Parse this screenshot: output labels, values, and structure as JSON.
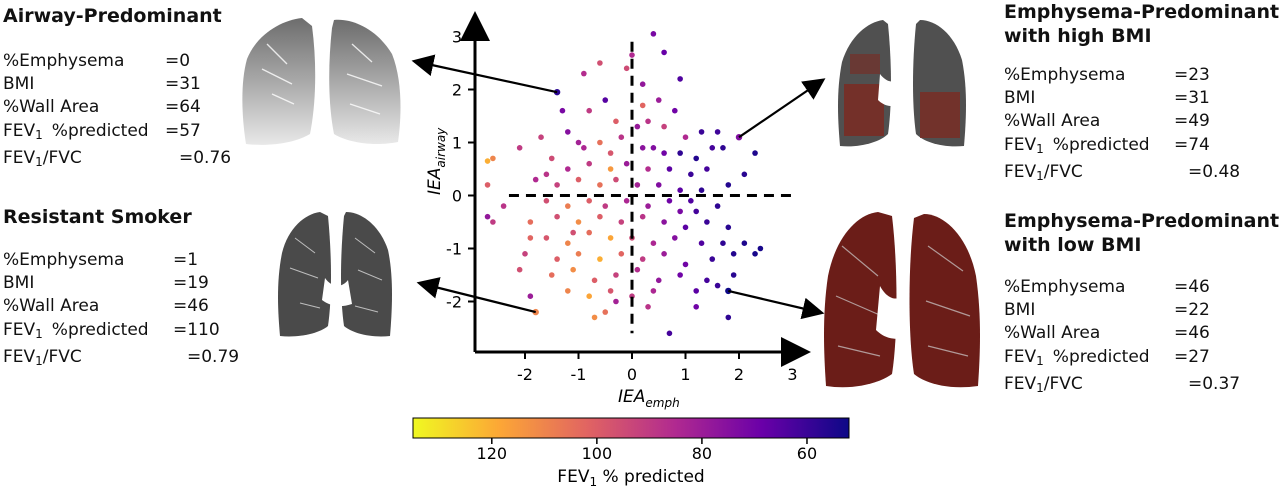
{
  "panels": {
    "airway": {
      "title": "Airway-Predominant",
      "rows": [
        {
          "label": "%Emphysema",
          "value": "=0"
        },
        {
          "label": "BMI",
          "value": "=31"
        },
        {
          "label": "%Wall Area",
          "value": "=64"
        },
        {
          "label": "FEV",
          "sub": "1",
          "label2": "%predicted",
          "value": "=57"
        },
        {
          "label": "FEV",
          "sub": "1",
          "label2": "/FVC",
          "value": "=0.76"
        }
      ]
    },
    "resistant": {
      "title": "Resistant Smoker",
      "rows": [
        {
          "label": "%Emphysema",
          "value": "=1"
        },
        {
          "label": "BMI",
          "value": "=19"
        },
        {
          "label": "%Wall Area",
          "value": "=46"
        },
        {
          "label": "FEV",
          "sub": "1",
          "label2": "%predicted",
          "value": "=110"
        },
        {
          "label": "FEV",
          "sub": "1",
          "label2": "/FVC",
          "value": "=0.79"
        }
      ]
    },
    "emph_high": {
      "title_line1": "Emphysema-Predominant",
      "title_line2": "with high BMI",
      "rows": [
        {
          "label": "%Emphysema",
          "value": "=23"
        },
        {
          "label": "BMI",
          "value": "=31"
        },
        {
          "label": "%Wall Area",
          "value": "=49"
        },
        {
          "label": "FEV",
          "sub": "1",
          "label2": "%predicted",
          "value": "=74"
        },
        {
          "label": "FEV",
          "sub": "1",
          "label2": "/FVC",
          "value": "=0.48"
        }
      ]
    },
    "emph_low": {
      "title_line1": "Emphysema-Predominant",
      "title_line2": "with low BMI",
      "rows": [
        {
          "label": "%Emphysema",
          "value": "=46"
        },
        {
          "label": "BMI",
          "value": "=22"
        },
        {
          "label": "%Wall Area",
          "value": "=46"
        },
        {
          "label": "FEV",
          "sub": "1",
          "label2": "%predicted",
          "value": "=27"
        },
        {
          "label": "FEV",
          "sub": "1",
          "label2": "/FVC",
          "value": "=0.37"
        }
      ]
    }
  },
  "chart_data": {
    "type": "scatter",
    "xlabel_main": "IEA",
    "xlabel_sub": "emph",
    "ylabel_main": "IEA",
    "ylabel_sub": "airway",
    "xlim": [
      -3,
      3.2
    ],
    "ylim": [
      -3,
      3.4
    ],
    "xticks": [
      "-2",
      "-1",
      "0",
      "1",
      "2",
      "3"
    ],
    "yticks": [
      "-2",
      "-1",
      "0",
      "1",
      "2",
      "3"
    ],
    "reference_lines": {
      "x": 0,
      "y": 0,
      "style": "dashed"
    },
    "colorbar": {
      "label_main": "FEV",
      "label_sub": "1",
      "label_rest": " % predicted",
      "range": [
        135,
        52
      ],
      "ticks": [
        "120",
        "100",
        "80",
        "60"
      ],
      "colormap": "plasma (reversed)"
    },
    "highlighted_points": [
      {
        "x": -1.4,
        "y": 1.95,
        "fev1": 57,
        "case": "airway"
      },
      {
        "x": 2.0,
        "y": 1.1,
        "fev1": 74,
        "case": "emph_high"
      },
      {
        "x": -1.8,
        "y": -2.2,
        "fev1": 110,
        "case": "resistant"
      },
      {
        "x": 1.8,
        "y": -1.8,
        "fev1": 27,
        "case": "emph_low"
      }
    ],
    "points": [
      [
        0.4,
        3.05,
        72
      ],
      [
        0.0,
        2.65,
        85
      ],
      [
        -0.1,
        2.4,
        95
      ],
      [
        0.2,
        2.1,
        78
      ],
      [
        0.5,
        1.8,
        80
      ],
      [
        0.8,
        1.6,
        70
      ],
      [
        -0.5,
        1.8,
        65
      ],
      [
        -0.8,
        1.6,
        90
      ],
      [
        -0.3,
        1.4,
        100
      ],
      [
        0.3,
        1.4,
        88
      ],
      [
        0.6,
        1.3,
        92
      ],
      [
        1.0,
        1.1,
        85
      ],
      [
        1.3,
        1.2,
        60
      ],
      [
        1.5,
        0.9,
        62
      ],
      [
        1.7,
        0.9,
        58
      ],
      [
        2.3,
        0.8,
        55
      ],
      [
        -1.2,
        1.2,
        75
      ],
      [
        -1.0,
        1.0,
        82
      ],
      [
        -0.6,
        1.0,
        105
      ],
      [
        -0.2,
        1.1,
        88
      ],
      [
        0.2,
        0.9,
        76
      ],
      [
        0.6,
        0.8,
        70
      ],
      [
        0.9,
        0.8,
        58
      ],
      [
        1.2,
        0.7,
        56
      ],
      [
        -2.6,
        0.7,
        110
      ],
      [
        -2.7,
        0.65,
        120
      ],
      [
        -1.5,
        0.7,
        95
      ],
      [
        -1.2,
        0.5,
        85
      ],
      [
        -0.8,
        0.6,
        90
      ],
      [
        -0.4,
        0.5,
        115
      ],
      [
        -0.1,
        0.6,
        80
      ],
      [
        0.3,
        0.5,
        86
      ],
      [
        0.7,
        0.5,
        66
      ],
      [
        1.1,
        0.4,
        60
      ],
      [
        1.4,
        0.5,
        62
      ],
      [
        2.1,
        0.4,
        57
      ],
      [
        -2.7,
        0.2,
        100
      ],
      [
        -1.8,
        0.3,
        85
      ],
      [
        -1.4,
        0.2,
        92
      ],
      [
        -1.0,
        0.3,
        100
      ],
      [
        -0.6,
        0.2,
        105
      ],
      [
        -0.3,
        0.3,
        95
      ],
      [
        0.1,
        0.2,
        82
      ],
      [
        0.5,
        0.2,
        74
      ],
      [
        0.9,
        0.1,
        66
      ],
      [
        1.3,
        0.1,
        58
      ],
      [
        1.8,
        0.2,
        56
      ],
      [
        -2.4,
        -0.2,
        88
      ],
      [
        -1.6,
        -0.1,
        96
      ],
      [
        -1.2,
        -0.2,
        108
      ],
      [
        -0.8,
        -0.1,
        100
      ],
      [
        -0.5,
        -0.2,
        90
      ],
      [
        -0.1,
        -0.1,
        84
      ],
      [
        0.3,
        -0.2,
        80
      ],
      [
        0.7,
        -0.1,
        70
      ],
      [
        1.2,
        -0.3,
        62
      ],
      [
        1.6,
        -0.2,
        58
      ],
      [
        -2.6,
        -0.5,
        90
      ],
      [
        -1.9,
        -0.5,
        104
      ],
      [
        -1.4,
        -0.4,
        96
      ],
      [
        -1.0,
        -0.5,
        112
      ],
      [
        -0.6,
        -0.4,
        100
      ],
      [
        -0.2,
        -0.5,
        92
      ],
      [
        0.2,
        -0.4,
        88
      ],
      [
        0.6,
        -0.5,
        76
      ],
      [
        1.0,
        -0.6,
        66
      ],
      [
        1.4,
        -0.5,
        60
      ],
      [
        1.8,
        -0.6,
        57
      ],
      [
        -1.6,
        -0.8,
        98
      ],
      [
        -1.2,
        -0.9,
        110
      ],
      [
        -0.8,
        -0.7,
        104
      ],
      [
        -0.4,
        -0.8,
        118
      ],
      [
        0.0,
        -0.8,
        95
      ],
      [
        0.4,
        -0.9,
        84
      ],
      [
        0.8,
        -0.8,
        75
      ],
      [
        1.3,
        -0.9,
        64
      ],
      [
        1.7,
        -0.9,
        58
      ],
      [
        2.1,
        -0.9,
        55
      ],
      [
        2.4,
        -1.0,
        54
      ],
      [
        -2.0,
        -1.1,
        92
      ],
      [
        -1.4,
        -1.2,
        100
      ],
      [
        -1.0,
        -1.1,
        108
      ],
      [
        -0.6,
        -1.2,
        120
      ],
      [
        -0.2,
        -1.1,
        102
      ],
      [
        0.2,
        -1.2,
        90
      ],
      [
        0.6,
        -1.1,
        80
      ],
      [
        1.0,
        -1.3,
        70
      ],
      [
        1.5,
        -1.2,
        60
      ],
      [
        1.9,
        -1.1,
        56
      ],
      [
        2.3,
        -1.1,
        54
      ],
      [
        -2.1,
        -1.4,
        96
      ],
      [
        -1.5,
        -1.5,
        104
      ],
      [
        -1.1,
        -1.4,
        112
      ],
      [
        -0.7,
        -1.6,
        100
      ],
      [
        -0.3,
        -1.5,
        92
      ],
      [
        0.1,
        -1.4,
        86
      ],
      [
        0.5,
        -1.6,
        78
      ],
      [
        0.9,
        -1.5,
        70
      ],
      [
        1.4,
        -1.6,
        62
      ],
      [
        -1.2,
        -1.8,
        110
      ],
      [
        -0.8,
        -1.9,
        118
      ],
      [
        -0.4,
        -1.8,
        98
      ],
      [
        0.0,
        -1.9,
        90
      ],
      [
        0.4,
        -1.8,
        84
      ],
      [
        1.2,
        -1.8,
        66
      ],
      [
        1.6,
        -1.7,
        60
      ],
      [
        -0.5,
        -2.2,
        105
      ],
      [
        0.3,
        -2.1,
        88
      ],
      [
        1.2,
        -2.1,
        70
      ],
      [
        1.8,
        -2.3,
        58
      ],
      [
        0.7,
        -2.6,
        62
      ],
      [
        -0.3,
        -2.0,
        82
      ],
      [
        -1.9,
        -1.9,
        80
      ],
      [
        -2.7,
        -0.4,
        78
      ],
      [
        -1.3,
        1.6,
        72
      ],
      [
        -0.9,
        2.3,
        86
      ],
      [
        0.6,
        2.7,
        68
      ],
      [
        0.9,
        2.2,
        64
      ],
      [
        -0.6,
        2.5,
        96
      ],
      [
        0.2,
        1.7,
        102
      ],
      [
        -1.7,
        1.1,
        92
      ],
      [
        -2.1,
        0.9,
        90
      ],
      [
        1.6,
        1.2,
        61
      ],
      [
        0.1,
        1.3,
        79
      ],
      [
        -0.4,
        0.8,
        98
      ],
      [
        -1.1,
        -0.7,
        96
      ],
      [
        0.9,
        -0.3,
        72
      ],
      [
        -0.9,
        0.9,
        84
      ],
      [
        -1.9,
        -0.8,
        102
      ],
      [
        1.1,
        -0.1,
        64
      ],
      [
        -0.7,
        -2.3,
        112
      ],
      [
        -1.6,
        0.4,
        88
      ],
      [
        0.4,
        0.9,
        74
      ],
      [
        1.9,
        -1.5,
        57
      ]
    ]
  }
}
